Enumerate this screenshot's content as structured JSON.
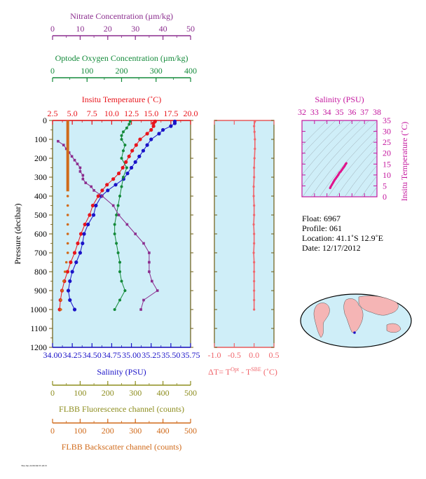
{
  "colors": {
    "nitrate": "#8b2d8e",
    "oxygen": "#138a3a",
    "temperature": "#e8141b",
    "salinity": "#1a12c8",
    "delta": "#f0656b",
    "fluorescence": "#8d8d1e",
    "backscatter": "#d06a1a",
    "ts_axis": "#c4169e",
    "ts_line": "#e0148c",
    "panel_bg": "#cfeef8",
    "axis_dark": "#6b5b12",
    "land": "#f5b5b5",
    "ocean": "#cfeef8"
  },
  "axes": {
    "nitrate_title": "Nitrate Concentration (µm/kg)",
    "oxygen_title": "Optode Oxygen Concentration (µm/kg)",
    "temperature_title": "Insitu Temperature (˚C)",
    "salinity_title": "Salinity (PSU)",
    "pressure_title": "Pressure (decibar)",
    "delta_title": "ΔT= T",
    "delta_sup1": "Opt",
    "delta_mid": " - T",
    "delta_sup2": "SBE",
    "delta_unit": " (˚C)",
    "fluorescence_title": "FLBB Fluorescence channel (counts)",
    "backscatter_title": "FLBB Backscatter channel (counts)",
    "ts_top_title": "Salinity (PSU)",
    "ts_right_title": "Insitu Temperature (˚C)"
  },
  "info": {
    "float": "Float:  6967",
    "profile": "Profile:  061",
    "location": "Location:  41.1˚S  12.9˚E",
    "date": "Date:  12/17/2012"
  },
  "footer": {
    "stamp": "Thu Jan 24 06:04:55 2013"
  },
  "chart_data": [
    {
      "type": "line",
      "name": "main-profile",
      "ylabel": "Pressure (decibar)",
      "ylim": [
        1200,
        0
      ],
      "yticks": [
        "0",
        "100",
        "200",
        "300",
        "400",
        "500",
        "600",
        "700",
        "800",
        "900",
        "1000",
        "1100",
        "1200"
      ],
      "xaxes": {
        "nitrate": {
          "ticks": [
            "0",
            "10",
            "20",
            "30",
            "40",
            "50"
          ],
          "range": [
            0,
            50
          ]
        },
        "oxygen": {
          "ticks": [
            "0",
            "100",
            "200",
            "300",
            "400"
          ],
          "range": [
            0,
            400
          ]
        },
        "temperature": {
          "ticks": [
            "2.5",
            "5.0",
            "7.5",
            "10.0",
            "12.5",
            "15.0",
            "17.5",
            "20.0"
          ],
          "range": [
            2.5,
            20.0
          ]
        },
        "salinity": {
          "ticks": [
            "34.00",
            "34.25",
            "34.50",
            "34.75",
            "35.00",
            "35.25",
            "35.50",
            "35.75"
          ],
          "range": [
            34.0,
            35.75
          ]
        },
        "fluorescence": {
          "ticks": [
            "0",
            "100",
            "200",
            "300",
            "400",
            "500"
          ],
          "range": [
            0,
            500
          ]
        },
        "backscatter": {
          "ticks": [
            "0",
            "100",
            "200",
            "300",
            "400",
            "500"
          ],
          "range": [
            0,
            500
          ]
        }
      },
      "series": [
        {
          "key": "temperature",
          "pressure": [
            5,
            15,
            30,
            50,
            70,
            100,
            130,
            160,
            190,
            220,
            250,
            280,
            310,
            340,
            370,
            400,
            450,
            500,
            550,
            600,
            650,
            700,
            750,
            800,
            850,
            900,
            950,
            1000
          ],
          "values": [
            15.5,
            15.3,
            15.3,
            15.0,
            14.5,
            13.6,
            13.1,
            12.6,
            12.2,
            11.8,
            11.4,
            10.9,
            10.2,
            9.4,
            8.8,
            8.3,
            7.6,
            7.2,
            6.6,
            6.1,
            5.7,
            5.3,
            4.8,
            4.4,
            4.0,
            3.7,
            3.5,
            3.4
          ]
        },
        {
          "key": "salinity",
          "pressure": [
            5,
            15,
            30,
            50,
            70,
            100,
            130,
            160,
            190,
            220,
            250,
            280,
            310,
            340,
            370,
            400,
            450,
            500,
            550,
            600,
            650,
            700,
            750,
            800,
            850,
            900,
            950,
            1000
          ],
          "values": [
            35.55,
            35.55,
            35.5,
            35.4,
            35.35,
            35.25,
            35.2,
            35.15,
            35.1,
            35.05,
            35.0,
            34.95,
            34.9,
            34.8,
            34.7,
            34.62,
            34.55,
            34.52,
            34.45,
            34.4,
            34.38,
            34.35,
            34.3,
            34.25,
            34.22,
            34.2,
            34.22,
            34.28
          ]
        },
        {
          "key": "oxygen",
          "pressure": [
            5,
            20,
            40,
            60,
            80,
            100,
            130,
            160,
            200,
            250,
            300,
            350,
            400,
            450,
            500,
            550,
            600,
            650,
            700,
            750,
            800,
            850,
            900,
            950,
            1000
          ],
          "values": [
            225,
            222,
            215,
            205,
            200,
            200,
            210,
            205,
            200,
            215,
            205,
            200,
            195,
            190,
            185,
            180,
            180,
            185,
            190,
            195,
            195,
            200,
            210,
            195,
            180
          ]
        },
        {
          "key": "nitrate",
          "pressure": [
            110,
            130,
            150,
            170,
            190,
            210,
            230,
            250,
            270,
            290,
            310,
            330,
            350,
            370,
            400,
            450,
            500,
            550,
            600,
            650,
            700,
            750,
            800,
            850,
            900,
            950,
            1000
          ],
          "values": [
            2,
            4,
            5,
            6,
            7,
            8,
            9,
            10,
            10,
            11,
            11,
            12,
            14,
            15,
            18,
            22,
            24,
            27,
            30,
            33,
            35,
            35,
            35,
            36,
            38,
            33,
            32
          ]
        },
        {
          "key": "backscatter",
          "pressure": [
            0,
            25,
            50,
            75,
            100,
            125,
            150,
            175,
            200,
            225,
            250,
            275,
            300,
            325,
            350,
            375,
            400,
            450,
            500,
            550,
            600,
            650,
            700,
            750,
            800,
            850,
            900,
            950,
            1000
          ],
          "values": [
            55,
            55,
            55,
            55,
            55,
            55,
            55,
            55,
            55,
            55,
            55,
            55,
            55,
            55,
            55,
            55,
            55,
            55,
            55,
            55,
            55,
            55,
            55,
            50,
            45,
            40,
            35,
            30,
            30
          ]
        }
      ]
    },
    {
      "type": "line",
      "name": "delta-t",
      "xlim": [
        -1.0,
        0.5
      ],
      "xticks": [
        "-1.0",
        "-0.5",
        "0.0",
        "0.5"
      ],
      "ylim": [
        1200,
        0
      ],
      "pressure": [
        5,
        30,
        60,
        100,
        150,
        200,
        250,
        300,
        350,
        400,
        450,
        500,
        550,
        600,
        650,
        700,
        750,
        800,
        850,
        900,
        950,
        1000
      ],
      "values": [
        0.02,
        0.0,
        0.01,
        0.02,
        0.02,
        0.01,
        0.0,
        0.0,
        -0.01,
        -0.01,
        0.0,
        0.0,
        -0.01,
        0.0,
        0.0,
        -0.01,
        0.0,
        0.0,
        0.0,
        0.0,
        0.0,
        0.0
      ]
    },
    {
      "type": "line",
      "name": "ts-diagram",
      "xlabel": "Salinity (PSU)",
      "ylabel": "Insitu Temperature (˚C)",
      "xlim": [
        32,
        38
      ],
      "ylim": [
        0,
        35
      ],
      "xticks": [
        "32",
        "33",
        "34",
        "35",
        "36",
        "37",
        "38"
      ],
      "yticks": [
        "0",
        "5",
        "10",
        "15",
        "20",
        "25",
        "30",
        "35"
      ],
      "salinity": [
        34.25,
        34.3,
        34.4,
        34.5,
        34.6,
        34.7,
        34.8,
        34.9,
        35.0,
        35.1,
        35.2,
        35.3,
        35.4,
        35.5,
        35.55
      ],
      "temperature": [
        4.0,
        4.6,
        5.6,
        6.6,
        7.6,
        8.4,
        9.2,
        10.0,
        11.0,
        11.6,
        12.4,
        13.2,
        14.0,
        15.0,
        15.4
      ]
    }
  ]
}
